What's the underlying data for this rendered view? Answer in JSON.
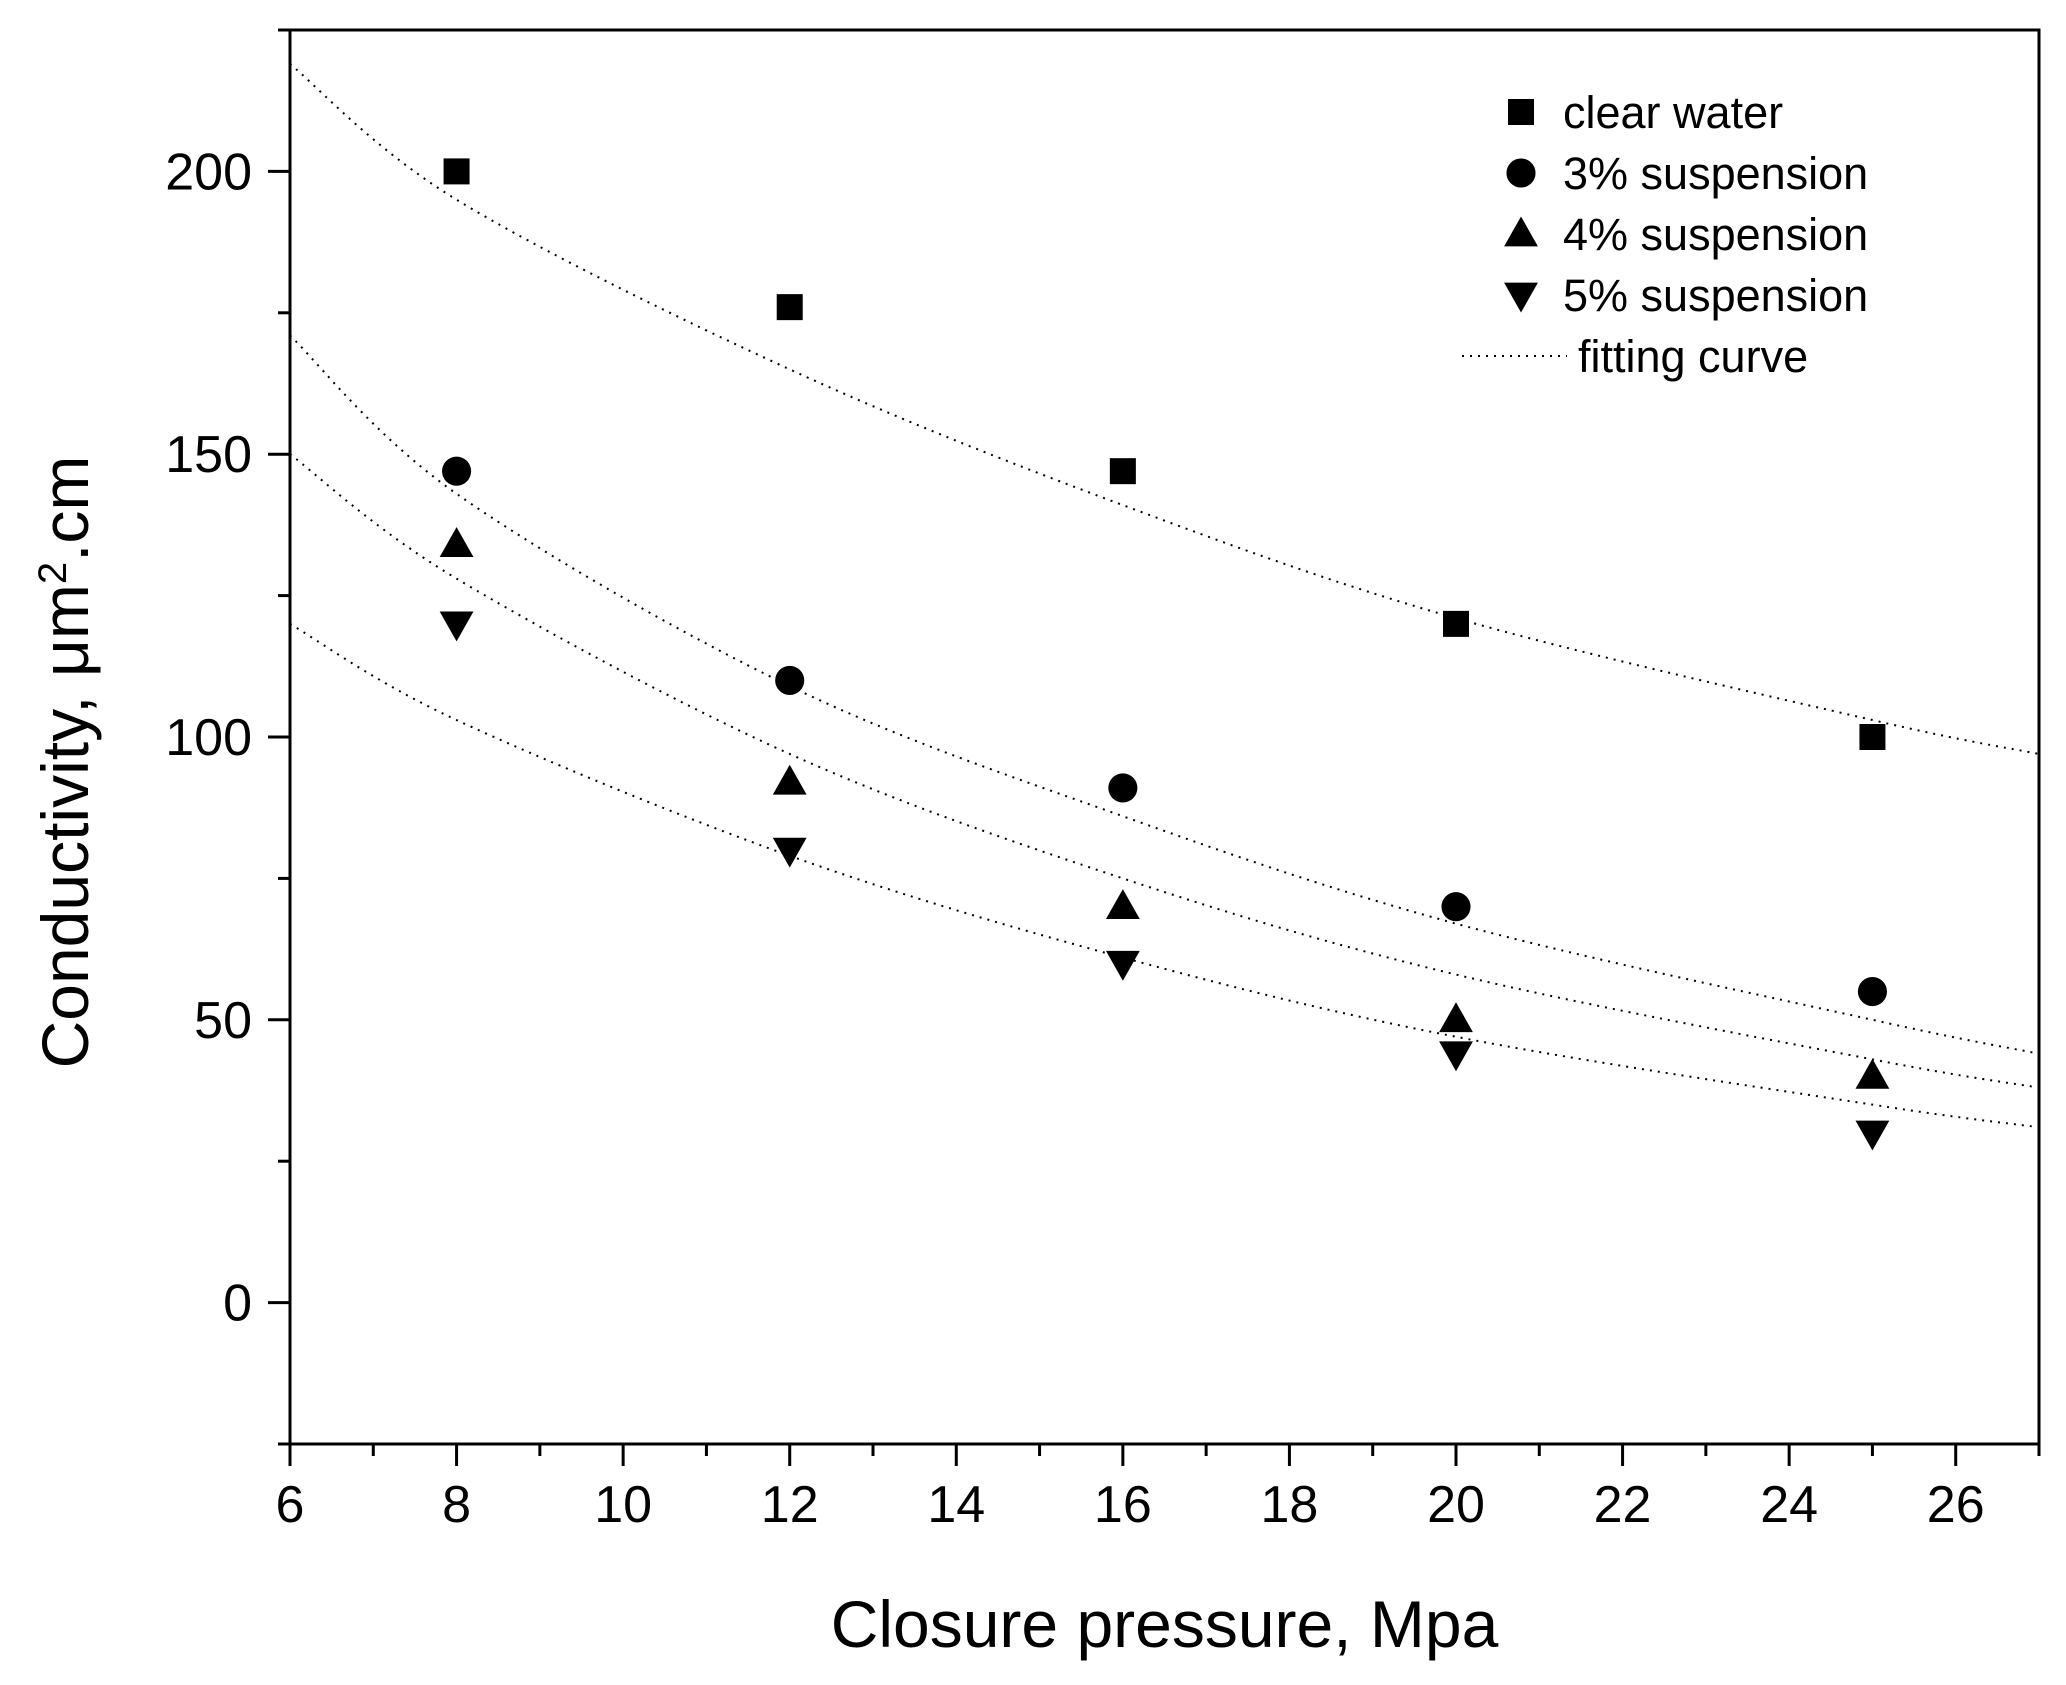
{
  "chart_data": {
    "type": "scatter",
    "xlabel": "Closure pressure, Mpa",
    "ylabel_prefix": "Conductivity, μm",
    "ylabel_sup": "2",
    "ylabel_suffix": ".cm",
    "xlim": [
      6,
      27
    ],
    "ylim": [
      -25,
      225
    ],
    "x_ticks": [
      6,
      8,
      10,
      12,
      14,
      16,
      18,
      20,
      22,
      24,
      26
    ],
    "x_tick_labels": [
      "6",
      "8",
      "10",
      "12",
      "14",
      "16",
      "18",
      "20",
      "22",
      "24",
      "26"
    ],
    "y_ticks": [
      0,
      50,
      100,
      150,
      200
    ],
    "y_tick_labels": [
      "0",
      "50",
      "100",
      "150",
      "200"
    ],
    "grid": false,
    "legend_position": "top-right",
    "series": [
      {
        "name": "clear water",
        "marker": "square",
        "x": [
          8,
          12,
          16,
          20,
          25
        ],
        "y": [
          200,
          176,
          147,
          120,
          100
        ]
      },
      {
        "name": "3% suspension",
        "marker": "circle",
        "x": [
          8,
          12,
          16,
          20,
          25
        ],
        "y": [
          147,
          110,
          91,
          70,
          55
        ]
      },
      {
        "name": "4% suspension",
        "marker": "triangle-up",
        "x": [
          8,
          12,
          16,
          20,
          25
        ],
        "y": [
          134,
          92,
          70,
          50,
          40
        ]
      },
      {
        "name": "5% suspension",
        "marker": "triangle-down",
        "x": [
          8,
          12,
          16,
          20,
          25
        ],
        "y": [
          120,
          80,
          60,
          44,
          30
        ]
      }
    ],
    "fitting_curves": {
      "name": "fitting curve",
      "style": "dotted",
      "curves": [
        {
          "x": [
            6,
            8,
            12,
            16,
            20,
            25,
            27
          ],
          "y": [
            219,
            195,
            165,
            141,
            121,
            103,
            97
          ]
        },
        {
          "x": [
            6,
            8,
            12,
            16,
            20,
            25,
            27
          ],
          "y": [
            171,
            143,
            109,
            86,
            67,
            50,
            44
          ]
        },
        {
          "x": [
            6,
            8,
            12,
            16,
            20,
            25,
            27
          ],
          "y": [
            150,
            128,
            97,
            75,
            58,
            43,
            38
          ]
        },
        {
          "x": [
            6,
            8,
            12,
            16,
            20,
            25,
            27
          ],
          "y": [
            120,
            103,
            79,
            61,
            47,
            35,
            31
          ]
        }
      ]
    },
    "colors": {
      "markers": "#000000",
      "curves": "#000000",
      "background": "#ffffff"
    }
  }
}
